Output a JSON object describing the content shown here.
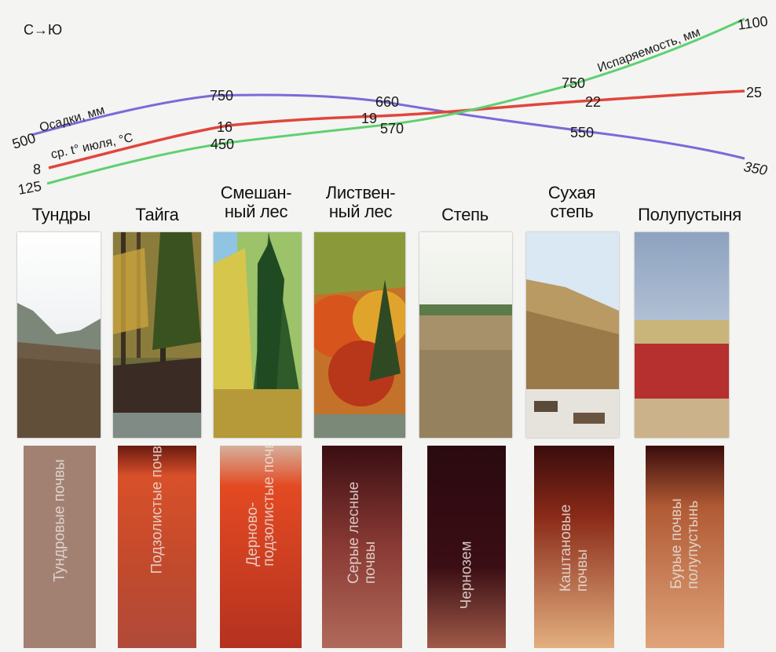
{
  "direction_label": "С→Ю",
  "curves": {
    "precipitation": {
      "label": "Осадки, мм",
      "color": "#7b6ad8",
      "values": [
        "500",
        "750",
        "660",
        "550",
        "350"
      ]
    },
    "july_temp": {
      "label": "ср. t° июля, °С",
      "color": "#e0463c",
      "values": [
        "8",
        "16",
        "19",
        "22",
        "25"
      ]
    },
    "evaporation": {
      "label": "Испаряемость, мм",
      "color": "#5fd070",
      "values": [
        "125",
        "450",
        "570",
        "750",
        "1100"
      ]
    }
  },
  "zones": [
    {
      "title": "Тундры",
      "soil": "Тундровые почвы"
    },
    {
      "title": "Тайга",
      "soil": "Подзолистые почвы"
    },
    {
      "title": "Смешан-\nный лес",
      "soil": "Дерново-\nподзолистые почвы"
    },
    {
      "title": "Листвен-\nный лес",
      "soil": "Серые лесные\nпочвы"
    },
    {
      "title": "Степь",
      "soil": "Чернозем"
    },
    {
      "title": "Сухая\nстепь",
      "soil": "Каштановые\nпочвы"
    },
    {
      "title": "Полупустыня",
      "soil": "Бурые почвы\nполупустынь"
    }
  ]
}
